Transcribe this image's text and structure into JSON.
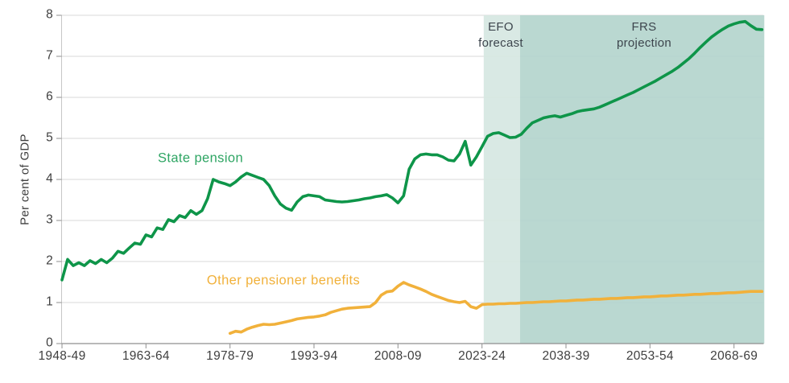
{
  "chart_data": {
    "type": "line",
    "title": "",
    "ylabel": "Per cent of GDP",
    "ylim": [
      0,
      8
    ],
    "y_ticks": [
      0,
      1,
      2,
      3,
      4,
      5,
      6,
      7,
      8
    ],
    "x_tick_labels": [
      "1948-49",
      "1963-64",
      "1978-79",
      "1993-94",
      "2008-09",
      "2023-24",
      "2038-39",
      "2053-54",
      "2068-69"
    ],
    "tick_step_years": 15,
    "grid_on": true,
    "grid_color": "#dadada",
    "axis_line_color": "#8f8f8f",
    "legend_position": "inline-labels",
    "series": [
      {
        "id": "state-pension",
        "name": "State pension",
        "color": "#0e9549",
        "label_color": "#2ea563",
        "start_tick": "1948-49",
        "start_index": 0,
        "values": [
          1.55,
          2.05,
          1.9,
          1.97,
          1.9,
          2.02,
          1.95,
          2.05,
          1.97,
          2.08,
          2.25,
          2.2,
          2.33,
          2.45,
          2.42,
          2.65,
          2.6,
          2.82,
          2.78,
          3.02,
          2.97,
          3.12,
          3.07,
          3.24,
          3.15,
          3.24,
          3.53,
          4.0,
          3.94,
          3.9,
          3.85,
          3.94,
          4.06,
          4.15,
          4.1,
          4.05,
          4.0,
          3.85,
          3.6,
          3.4,
          3.3,
          3.25,
          3.45,
          3.58,
          3.62,
          3.6,
          3.58,
          3.5,
          3.48,
          3.46,
          3.45,
          3.46,
          3.48,
          3.5,
          3.53,
          3.55,
          3.58,
          3.6,
          3.63,
          3.55,
          3.43,
          3.6,
          4.25,
          4.5,
          4.6,
          4.62,
          4.6,
          4.6,
          4.55,
          4.47,
          4.45,
          4.62,
          4.93,
          4.35,
          4.55,
          4.8,
          5.05,
          5.12,
          5.14,
          5.08,
          5.02,
          5.03,
          5.1,
          5.25,
          5.38,
          5.44,
          5.5,
          5.53,
          5.55,
          5.52,
          5.56,
          5.6,
          5.65,
          5.68,
          5.7,
          5.72,
          5.76,
          5.82,
          5.88,
          5.94,
          6.0,
          6.06,
          6.12,
          6.19,
          6.26,
          6.33,
          6.4,
          6.48,
          6.56,
          6.64,
          6.73,
          6.84,
          6.95,
          7.08,
          7.22,
          7.35,
          7.47,
          7.57,
          7.66,
          7.74,
          7.79,
          7.83,
          7.85,
          7.75,
          7.66,
          7.65
        ]
      },
      {
        "id": "other-pensioner-benefits",
        "name": "Other pensioner benefits",
        "color": "#f1b13b",
        "label_color": "#f1b13b",
        "start_tick": "1978-79",
        "start_index": 30,
        "values": [
          0.25,
          0.3,
          0.28,
          0.35,
          0.4,
          0.44,
          0.47,
          0.46,
          0.47,
          0.5,
          0.53,
          0.56,
          0.6,
          0.62,
          0.64,
          0.65,
          0.67,
          0.7,
          0.76,
          0.8,
          0.84,
          0.86,
          0.87,
          0.88,
          0.89,
          0.9,
          1.0,
          1.18,
          1.26,
          1.28,
          1.4,
          1.49,
          1.43,
          1.38,
          1.33,
          1.27,
          1.2,
          1.15,
          1.1,
          1.05,
          1.02,
          1.0,
          1.03,
          0.9,
          0.86,
          0.95,
          0.96,
          0.96,
          0.97,
          0.97,
          0.98,
          0.98,
          0.99,
          1.0,
          1.0,
          1.01,
          1.02,
          1.02,
          1.03,
          1.04,
          1.04,
          1.05,
          1.06,
          1.06,
          1.07,
          1.08,
          1.08,
          1.09,
          1.1,
          1.1,
          1.11,
          1.12,
          1.12,
          1.13,
          1.14,
          1.14,
          1.15,
          1.16,
          1.16,
          1.17,
          1.18,
          1.18,
          1.19,
          1.2,
          1.2,
          1.21,
          1.22,
          1.22,
          1.23,
          1.24,
          1.24,
          1.25,
          1.26,
          1.27,
          1.27,
          1.27
        ]
      }
    ],
    "annotations": {
      "text_color": "#3d454d",
      "efo_band": {
        "label": "EFO forecast",
        "line1": "EFO",
        "line2": "forecast",
        "color": "#d5e7e1",
        "start_index": 75.3,
        "end_index": 81.8
      },
      "frs_band": {
        "label": "FRS projection",
        "line1": "FRS",
        "line2": "projection",
        "color": "#b2d4cc",
        "start_index": 81.8,
        "end_index": 125.4
      }
    }
  }
}
